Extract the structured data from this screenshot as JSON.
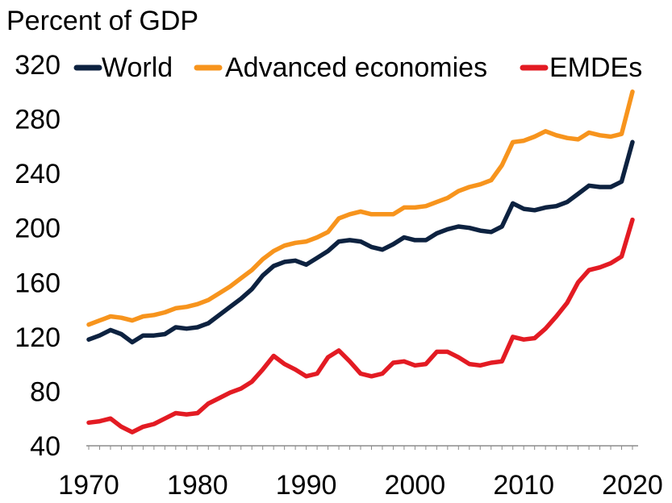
{
  "chart_data": {
    "type": "line",
    "title": "",
    "ylabel": "Percent of GDP",
    "xlabel": "",
    "ylim": [
      40,
      320
    ],
    "xlim": [
      1970,
      2020
    ],
    "yticks": [
      40,
      80,
      120,
      160,
      200,
      240,
      280,
      320
    ],
    "xticks": [
      1970,
      1980,
      1990,
      2000,
      2010,
      2020
    ],
    "ytick_labels": [
      "40",
      "80",
      "120",
      "160",
      "200",
      "240",
      "280",
      "320"
    ],
    "xtick_labels": [
      "1970",
      "1980",
      "1990",
      "2000",
      "2010",
      "2020"
    ],
    "legend_position": "top",
    "x": [
      1970,
      1971,
      1972,
      1973,
      1974,
      1975,
      1976,
      1977,
      1978,
      1979,
      1980,
      1981,
      1982,
      1983,
      1984,
      1985,
      1986,
      1987,
      1988,
      1989,
      1990,
      1991,
      1992,
      1993,
      1994,
      1995,
      1996,
      1997,
      1998,
      1999,
      2000,
      2001,
      2002,
      2003,
      2004,
      2005,
      2006,
      2007,
      2008,
      2009,
      2010,
      2011,
      2012,
      2013,
      2014,
      2015,
      2016,
      2017,
      2018,
      2019,
      2020
    ],
    "series": [
      {
        "name": "World",
        "color": "#0d2240",
        "values": [
          118,
          121,
          125,
          122,
          116,
          121,
          121,
          122,
          127,
          126,
          127,
          130,
          136,
          142,
          148,
          155,
          165,
          172,
          175,
          176,
          173,
          178,
          183,
          190,
          191,
          190,
          186,
          184,
          188,
          193,
          191,
          191,
          196,
          199,
          201,
          200,
          198,
          197,
          201,
          218,
          214,
          213,
          215,
          216,
          219,
          225,
          231,
          230,
          230,
          234,
          263
        ]
      },
      {
        "name": "Advanced economies",
        "color": "#f7941d",
        "values": [
          129,
          132,
          135,
          134,
          132,
          135,
          136,
          138,
          141,
          142,
          144,
          147,
          152,
          157,
          163,
          169,
          177,
          183,
          187,
          189,
          190,
          193,
          197,
          207,
          210,
          212,
          210,
          210,
          210,
          215,
          215,
          216,
          219,
          222,
          227,
          230,
          232,
          235,
          246,
          263,
          264,
          267,
          271,
          268,
          266,
          265,
          270,
          268,
          267,
          269,
          300
        ]
      },
      {
        "name": "EMDEs",
        "color": "#e31b23",
        "values": [
          57,
          58,
          60,
          54,
          50,
          54,
          56,
          60,
          64,
          63,
          64,
          71,
          75,
          79,
          82,
          87,
          96,
          106,
          100,
          96,
          91,
          93,
          105,
          110,
          102,
          93,
          91,
          93,
          101,
          102,
          99,
          100,
          109,
          109,
          105,
          100,
          99,
          101,
          102,
          120,
          118,
          119,
          126,
          135,
          145,
          160,
          169,
          171,
          174,
          179,
          206
        ]
      }
    ]
  }
}
